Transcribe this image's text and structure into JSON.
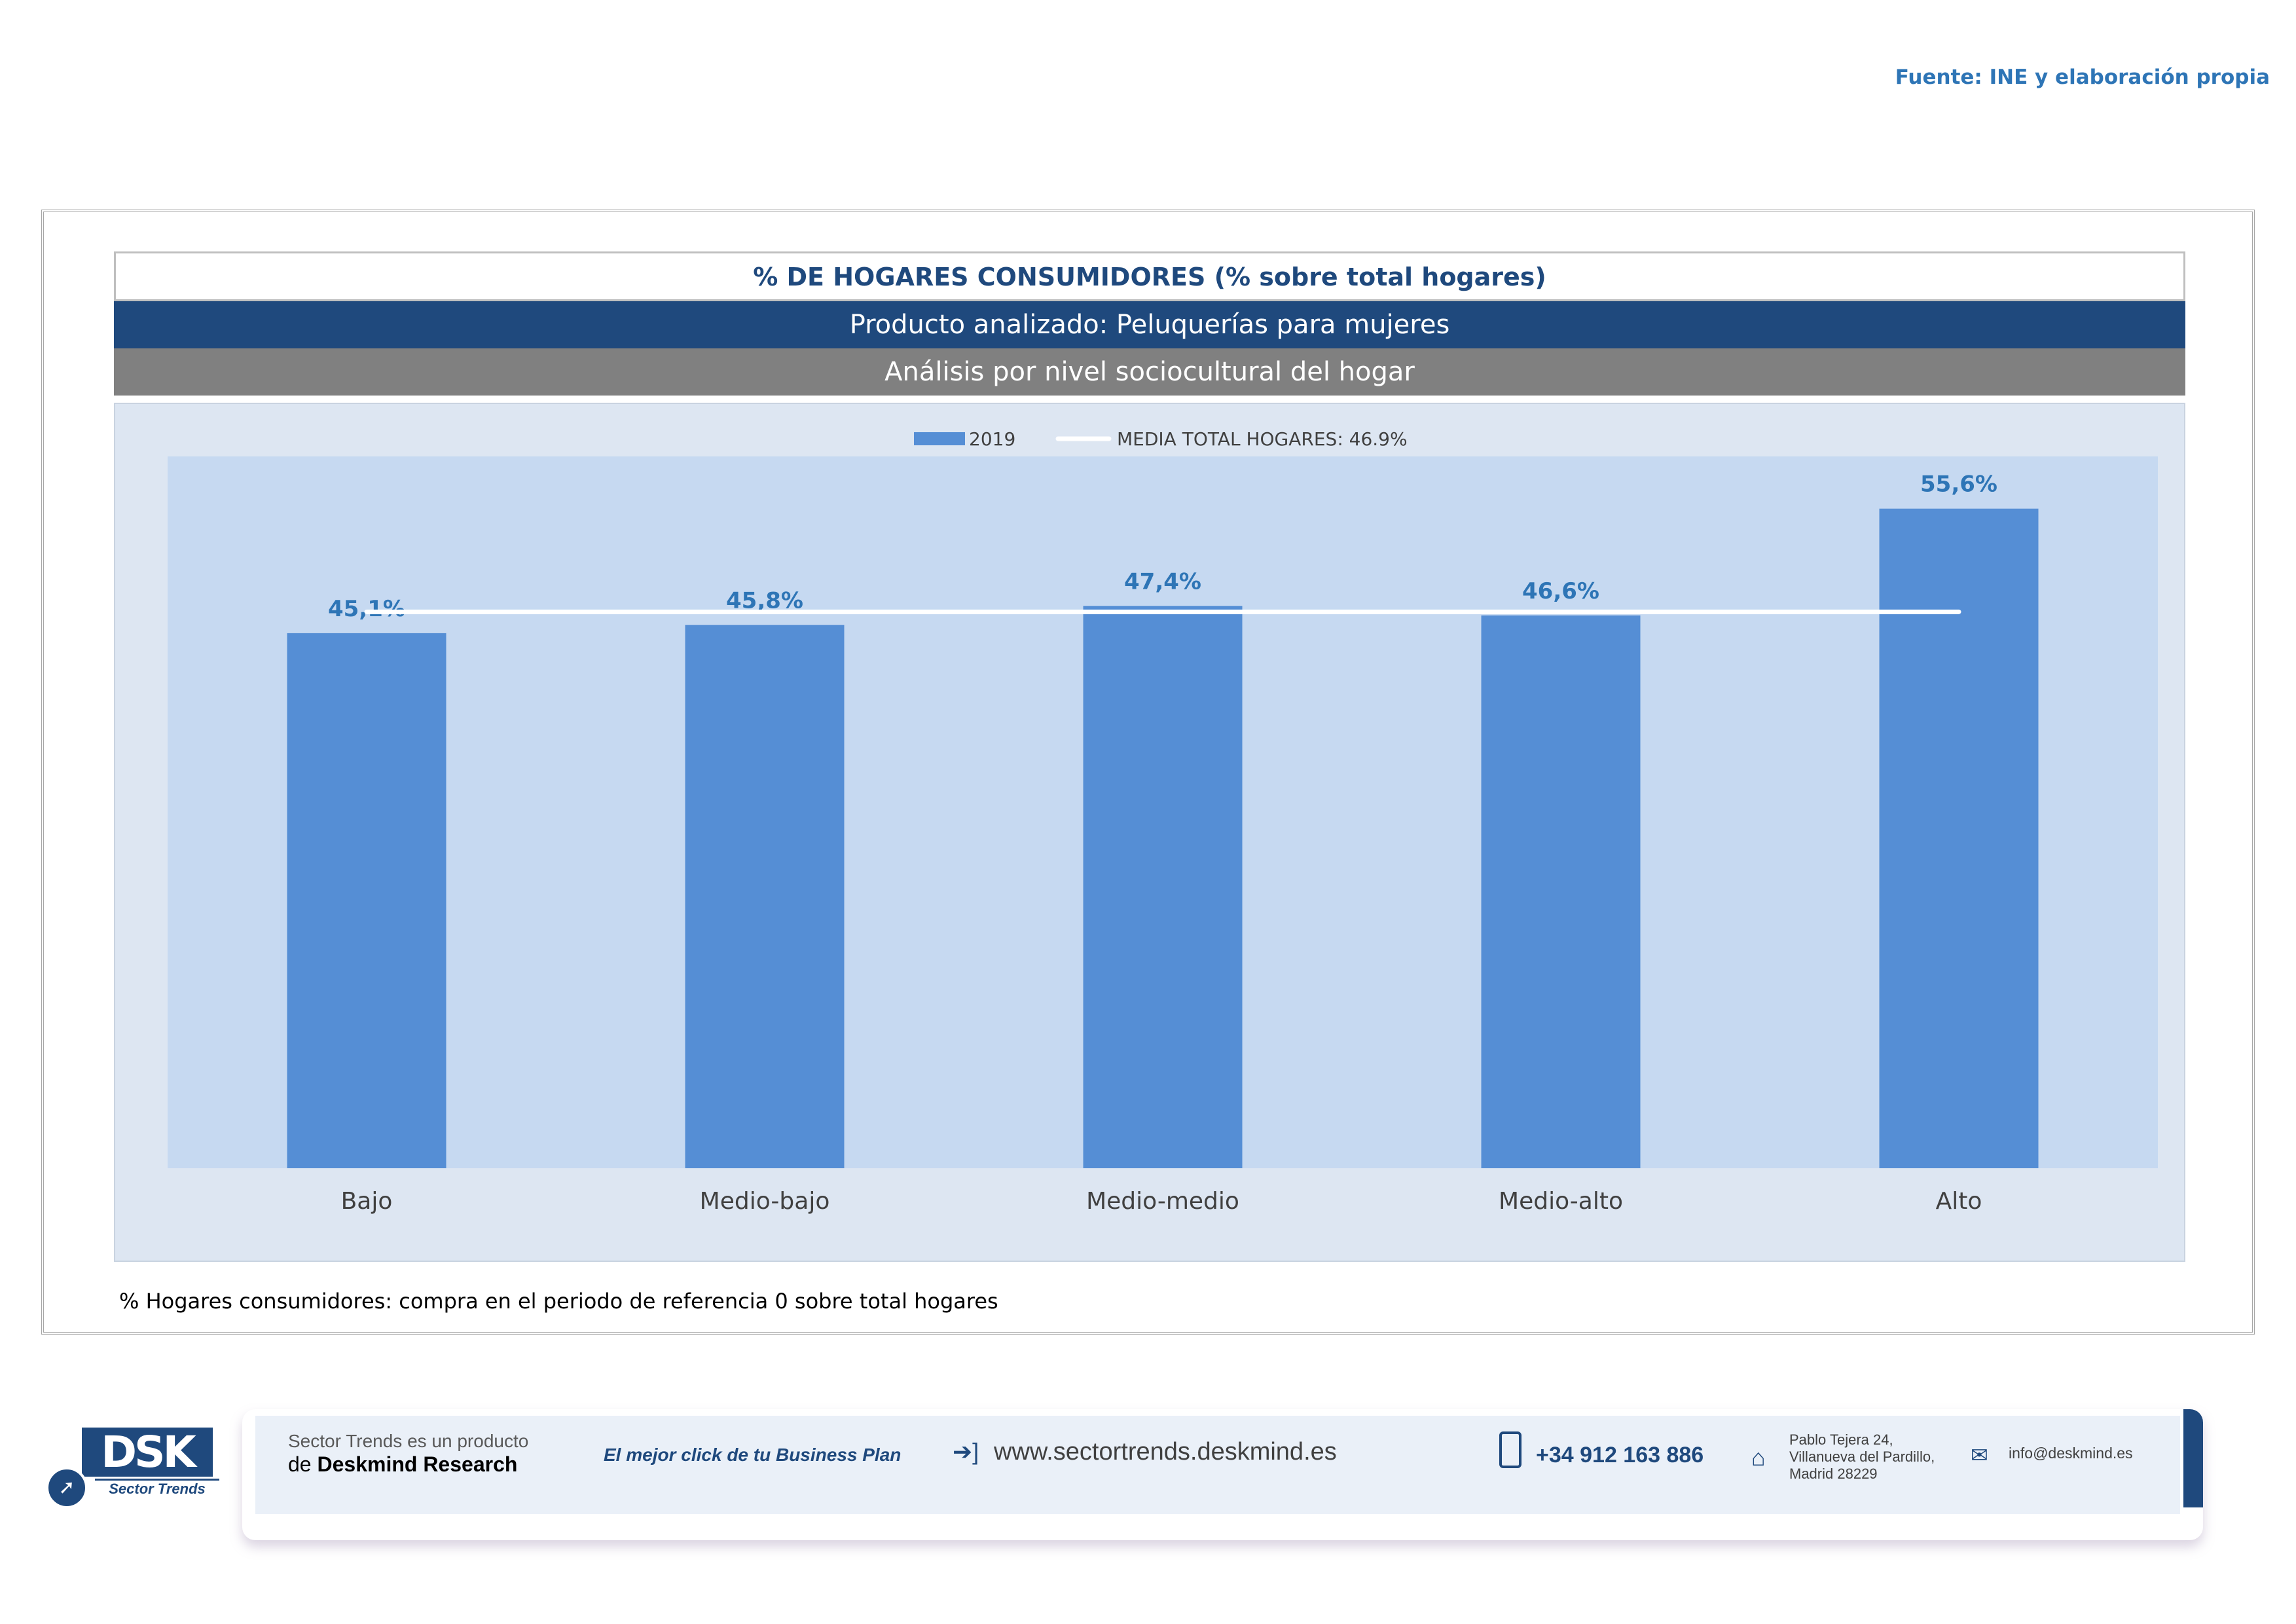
{
  "source": "Fuente: INE y elaboración propia",
  "header": {
    "title": "% DE HOGARES CONSUMIDORES (% sobre total hogares)",
    "product": "Producto analizado: Peluquerías para mujeres",
    "analysis": "Análisis por nivel sociocultural del hogar"
  },
  "chart_data": {
    "type": "bar",
    "categories": [
      "Bajo",
      "Medio-bajo",
      "Medio-medio",
      "Medio-alto",
      "Alto"
    ],
    "series": [
      {
        "name": "2019",
        "values": [
          45.1,
          45.8,
          47.4,
          46.6,
          55.6
        ],
        "color": "#558ed5"
      }
    ],
    "data_labels": [
      "45,1%",
      "45,8%",
      "47,4%",
      "46,6%",
      "55,6%"
    ],
    "reference_line": {
      "name": "MEDIA TOTAL  HOGARES:  46.9%",
      "value": 46.9,
      "color": "#ffffff"
    },
    "legend": [
      "2019",
      "MEDIA TOTAL  HOGARES:  46.9%"
    ],
    "legend_position": "top",
    "ylim": [
      0,
      60
    ],
    "grid": false,
    "plot_background": "#c6d9f1",
    "label_color": "#2e75b6"
  },
  "footnote": "% Hogares consumidores: compra en el periodo de referencia 0 sobre total hogares",
  "banner": {
    "logo_text": "DSK",
    "logo_sub": "Sector Trends",
    "product_line1": "Sector Trends es un producto",
    "product_line2_prefix": "de",
    "product_line2_brand": "Deskmind Research",
    "slogan": "El mejor click de tu Business Plan",
    "website": "www.sectortrends.deskmind.es",
    "phone": "+34 912 163 886",
    "address": "Pablo Tejera 24, Villanueva del Pardillo, Madrid 28229",
    "email": "info@deskmind.es"
  }
}
